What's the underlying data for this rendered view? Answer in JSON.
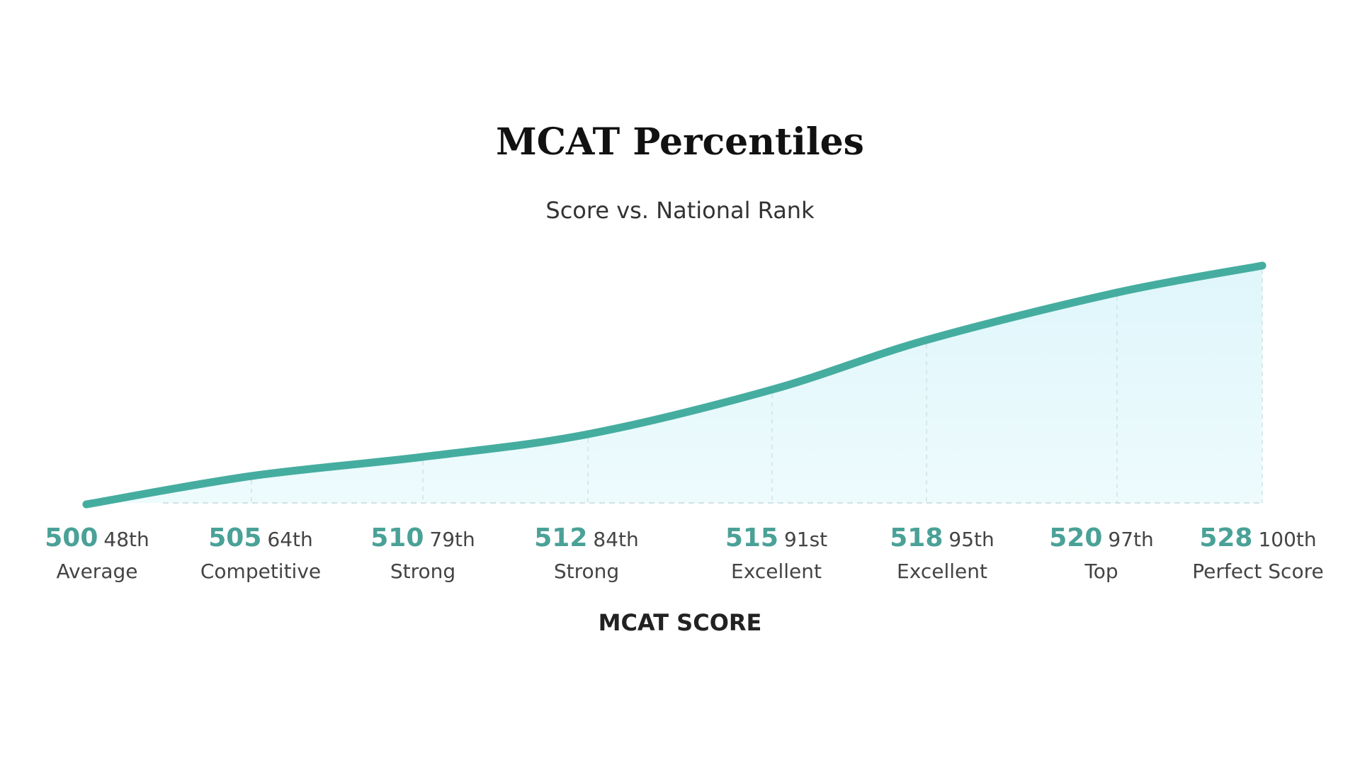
{
  "chart_data": {
    "type": "area",
    "title": "MCAT Percentiles",
    "subtitle": "Score vs. National Rank",
    "xlabel": "MCAT SCORE",
    "ylabel": "",
    "x_labels": [
      "500",
      "505",
      "510",
      "512",
      "515",
      "518",
      "520",
      "528"
    ],
    "percentile_labels": [
      "48th",
      "64th",
      "79th",
      "84th",
      "91st",
      "95th",
      "97th",
      "100th"
    ],
    "category_labels": [
      "Average",
      "Competitive",
      "Strong",
      "Strong",
      "Excellent",
      "Excellent",
      "Top",
      "Perfect Score"
    ],
    "series": [
      {
        "values": [
          48,
          64,
          79,
          84,
          91,
          95,
          97,
          100
        ]
      }
    ],
    "grid": false,
    "legend": "none",
    "colors": {
      "line": "#45ada0",
      "fill": "#e4f8fb",
      "tick_score": "#4aa197",
      "guide": "#cfe2e4"
    }
  }
}
